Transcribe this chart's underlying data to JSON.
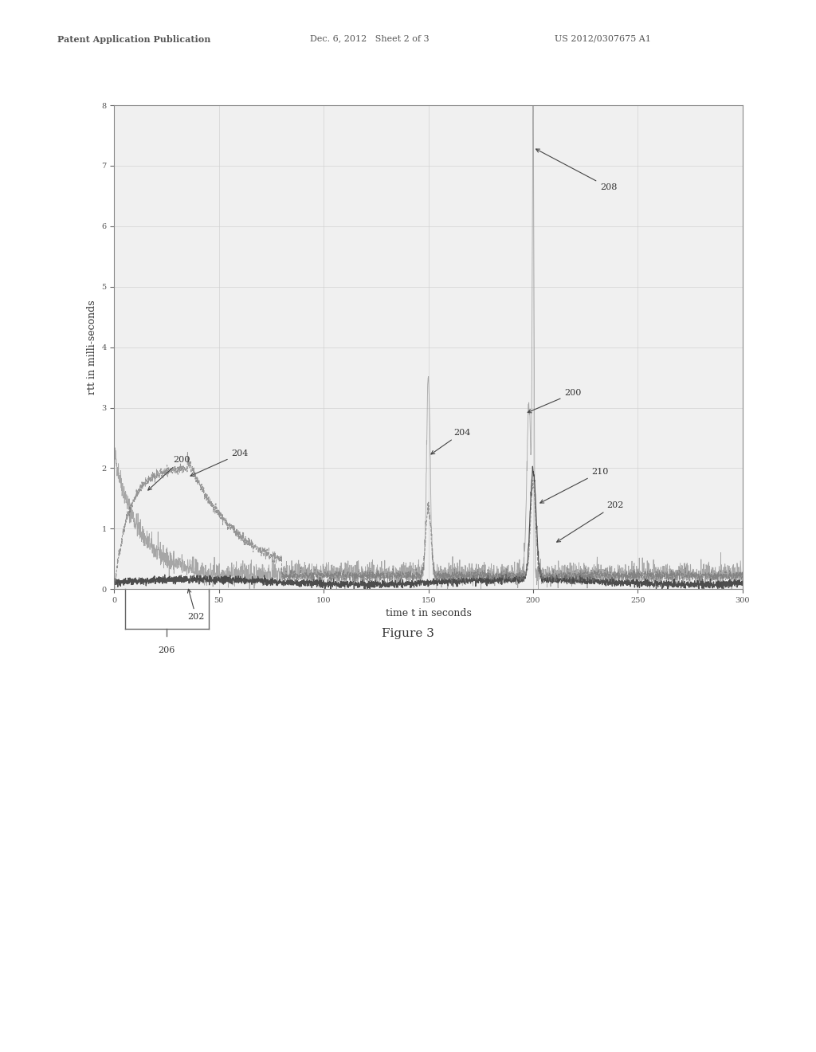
{
  "title_header_left": "Patent Application Publication",
  "title_header_mid": "Dec. 6, 2012   Sheet 2 of 3",
  "title_header_right": "US 2012/0307675 A1",
  "xlabel": "time t in seconds",
  "ylabel": "rtt in milli-seconds",
  "xlim": [
    0,
    300
  ],
  "ylim": [
    0,
    8
  ],
  "yticks": [
    0,
    1,
    2,
    3,
    4,
    5,
    6,
    7,
    8
  ],
  "xticks": [
    0,
    50,
    100,
    150,
    200,
    250,
    300
  ],
  "figure_caption": "Figure 3",
  "background_color": "#ffffff",
  "plot_bg_color": "#f0f0f0",
  "grid_color": "#cccccc",
  "brace_x_start": 5,
  "brace_x_end": 45,
  "brace_label": "206",
  "line_colors": {
    "raw_rtt": "#999999",
    "smoothed": "#444444",
    "filtered": "#777777"
  }
}
